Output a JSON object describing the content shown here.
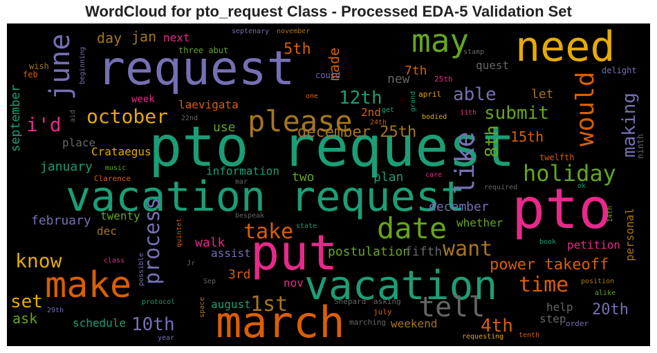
{
  "chart_data": {
    "type": "wordcloud",
    "title": "WordCloud for pto_request Class - Processed EDA-5 Validation Set",
    "words": [
      "pto request",
      "vacation request",
      "request",
      "need",
      "pto",
      "put",
      "march",
      "vacation",
      "make",
      "may",
      "date",
      "please",
      "tell",
      "holiday",
      "june",
      "like",
      "would",
      "process",
      "making",
      "8th",
      "made",
      "september",
      "personal",
      "power takeoff",
      "time",
      "want",
      "submit",
      "able",
      "october",
      "i'd",
      "12th",
      "december 25th",
      "5th",
      "15th",
      "let",
      "2nd",
      "24th",
      "get",
      "grand",
      "bodied",
      "11th",
      "april",
      "7th",
      "new",
      "25th",
      "quest",
      "stamp",
      "delight",
      "ninth",
      "could",
      "one",
      "day",
      "jan",
      "next",
      "three abut",
      "septenary",
      "november",
      "wish",
      "feb",
      "beginning",
      "aid",
      "week",
      "laevigata",
      "22nd",
      "use",
      "place",
      "Crataegus",
      "january",
      "music",
      "Clarence",
      "information",
      "two",
      "plan",
      "mar",
      "care",
      "required",
      "ok",
      "14th",
      "december",
      "february",
      "twenty",
      "dec",
      "bespeak",
      "take",
      "state",
      "whether",
      "quintet",
      "walk",
      "assist",
      "postulation",
      "fifth",
      "petition",
      "book",
      "know",
      "class",
      "possible",
      "Jr",
      "3rd",
      "Sep",
      "position",
      "nov",
      "alike",
      "set",
      "protocol",
      "1st",
      "space",
      "august",
      "Shepard",
      "asking",
      "20th",
      "help",
      "ask",
      "29th",
      "10th",
      "schedule",
      "july",
      "4th",
      "step",
      "order",
      "marching",
      "weekend",
      "year",
      "requesting",
      "tenth",
      "twelfth"
    ]
  }
}
